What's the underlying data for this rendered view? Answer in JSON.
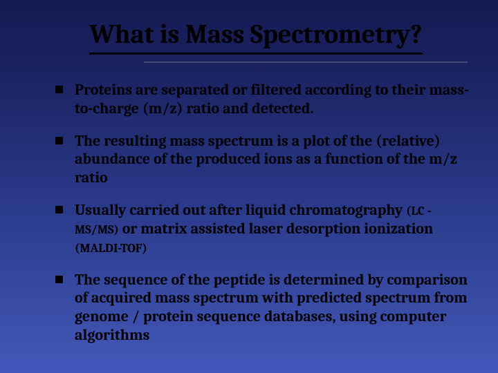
{
  "slide": {
    "title": "What is Mass Spectrometry?",
    "background_gradient": [
      "#141a52",
      "#1a2260",
      "#2a3a8a",
      "#4258b8"
    ],
    "title_fontsize": 38,
    "body_fontsize": 22,
    "small_fontsize": 18,
    "title_color": "#000000",
    "text_color": "#000000",
    "bullet_marker": "square",
    "bullet_color": "#000000",
    "divider_color": "#4a4a7a",
    "bullets": [
      {
        "text": "Proteins are separated or filtered according to their mass-to-charge (m/z) ratio and detected."
      },
      {
        "text": "The  resulting mass spectrum is a plot of the (relative) abundance of the produced ions as a function of the m/z ratio"
      },
      {
        "prefix": "Usually carried out after liquid chromatography ",
        "small1": "(LC -MS/MS)",
        "mid": " or matrix assisted laser desorption ionization ",
        "small2": "(MALDI-TOF)"
      },
      {
        "text": "The sequence of the peptide is determined by comparison of acquired mass spectrum with predicted spectrum from genome / protein sequence databases, using computer algorithms"
      }
    ]
  }
}
